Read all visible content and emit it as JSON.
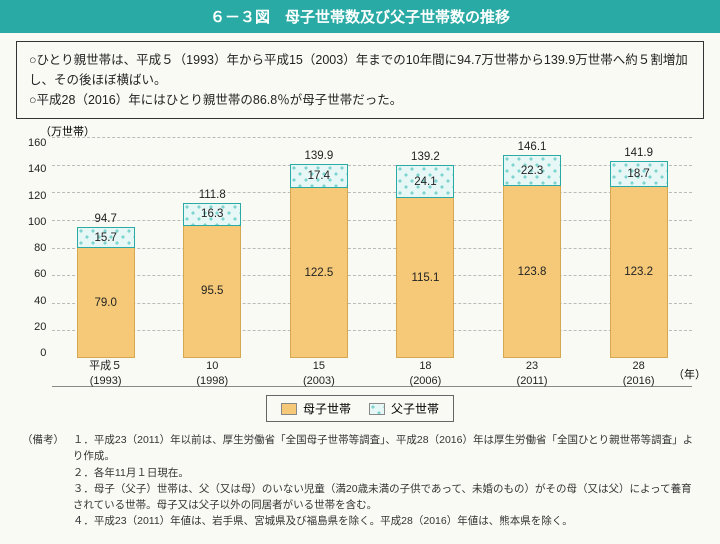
{
  "title": "６－３図　母子世帯数及び父子世帯数の推移",
  "summary": {
    "line1": "○ひとり親世帯は、平成５（1993）年から平成15（2003）年までの10年間に94.7万世帯から139.9万世帯へ約５割増加し、その後ほぼ横ばい。",
    "line2": "○平成28（2016）年にはひとり親世帯の86.8％が母子世帯だった。"
  },
  "chart": {
    "type": "stacked-bar",
    "y_unit": "（万世帯）",
    "x_unit": "（年）",
    "ymax": 160,
    "ytick_step": 20,
    "yticks": [
      "160",
      "140",
      "120",
      "100",
      "80",
      "60",
      "40",
      "20",
      "0"
    ],
    "categories": [
      {
        "era": "平成５",
        "year": "(1993)"
      },
      {
        "era": "10",
        "year": "(1998)"
      },
      {
        "era": "15",
        "year": "(2003)"
      },
      {
        "era": "18",
        "year": "(2006)"
      },
      {
        "era": "23",
        "year": "(2011)"
      },
      {
        "era": "28",
        "year": "(2016)"
      }
    ],
    "series": {
      "mother": {
        "label": "母子世帯",
        "color": "#f5c978"
      },
      "father": {
        "label": "父子世帯",
        "color_pattern": "teal-dots"
      }
    },
    "data": [
      {
        "total": 94.7,
        "father": 15.7,
        "mother": 79.0
      },
      {
        "total": 111.8,
        "father": 16.3,
        "mother": 95.5
      },
      {
        "total": 139.9,
        "father": 17.4,
        "mother": 122.5
      },
      {
        "total": 139.2,
        "father": 24.1,
        "mother": 115.1
      },
      {
        "total": 146.1,
        "father": 22.3,
        "mother": 123.8
      },
      {
        "total": 141.9,
        "father": 18.7,
        "mother": 123.2
      }
    ],
    "colors": {
      "grid": "#bbbbbb",
      "axis": "#888888",
      "text": "#222222",
      "bg": "#fafaf5",
      "title_bg": "#2aaaa5"
    }
  },
  "legend": {
    "mother": "母子世帯",
    "father": "父子世帯"
  },
  "notes": {
    "head": "（備考）",
    "items": [
      "１．平成23（2011）年以前は、厚生労働省「全国母子世帯等調査」、平成28（2016）年は厚生労働省「全国ひとり親世帯等調査」より作成。",
      "２．各年11月１日現在。",
      "３．母子（父子）世帯は、父（又は母）のいない児童（満20歳未満の子供であって、未婚のもの）がその母（又は父）によって養育されている世帯。母子又は父子以外の同居者がいる世帯を含む。",
      "４．平成23（2011）年値は、岩手県、宮城県及び福島県を除く。平成28（2016）年値は、熊本県を除く。"
    ]
  }
}
